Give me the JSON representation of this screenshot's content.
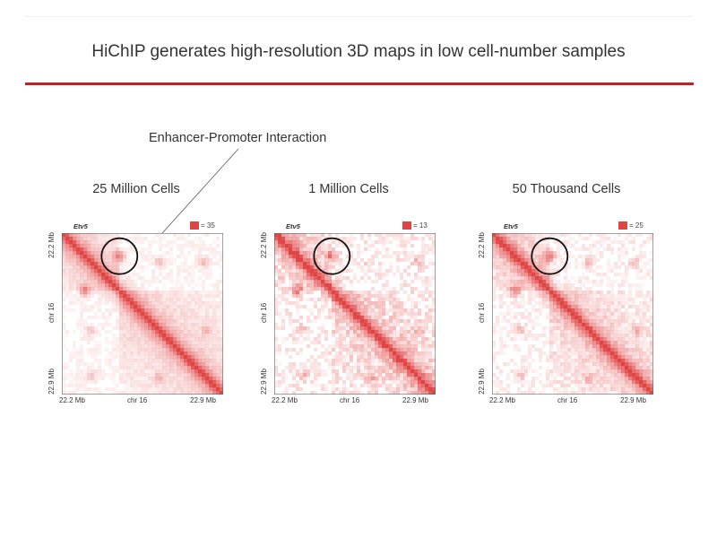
{
  "slide": {
    "title": "HiChIP generates high-resolution 3D maps in low cell-number samples",
    "callout_label": "Enhancer-Promoter Interaction"
  },
  "colors": {
    "accent_rule": "#c42027",
    "heatmap_red": "#e04545",
    "annotation_circle": "#111111"
  },
  "chart_data": [
    {
      "type": "heatmap",
      "title": "25 Million Cells",
      "gene_label": "Etv5",
      "legend_max_label": "= 35",
      "legend_max": 35,
      "xlabel": "chr 16",
      "ylabel": "chr 16",
      "x_ticks": [
        "22.2 Mb",
        "22.9 Mb"
      ],
      "y_ticks": [
        "22.2 Mb",
        "22.9 Mb"
      ],
      "xlim": [
        22.2,
        22.9
      ],
      "ylim": [
        22.2,
        22.9
      ],
      "highlighted_interaction": {
        "x": 22.45,
        "y": 22.3
      }
    },
    {
      "type": "heatmap",
      "title": "1 Million Cells",
      "gene_label": "Etv5",
      "legend_max_label": "= 13",
      "legend_max": 13,
      "xlabel": "chr 16",
      "ylabel": "chr 16",
      "x_ticks": [
        "22.2 Mb",
        "22.9 Mb"
      ],
      "y_ticks": [
        "22.2 Mb",
        "22.9 Mb"
      ],
      "xlim": [
        22.2,
        22.9
      ],
      "ylim": [
        22.2,
        22.9
      ],
      "highlighted_interaction": {
        "x": 22.45,
        "y": 22.3
      }
    },
    {
      "type": "heatmap",
      "title": "50 Thousand Cells",
      "gene_label": "Etv5",
      "legend_max_label": "= 25",
      "legend_max": 25,
      "xlabel": "chr 16",
      "ylabel": "chr 16",
      "x_ticks": [
        "22.2 Mb",
        "22.9 Mb"
      ],
      "y_ticks": [
        "22.2 Mb",
        "22.9 Mb"
      ],
      "xlim": [
        22.2,
        22.9
      ],
      "ylim": [
        22.2,
        22.9
      ],
      "highlighted_interaction": {
        "x": 22.45,
        "y": 22.3
      }
    }
  ]
}
